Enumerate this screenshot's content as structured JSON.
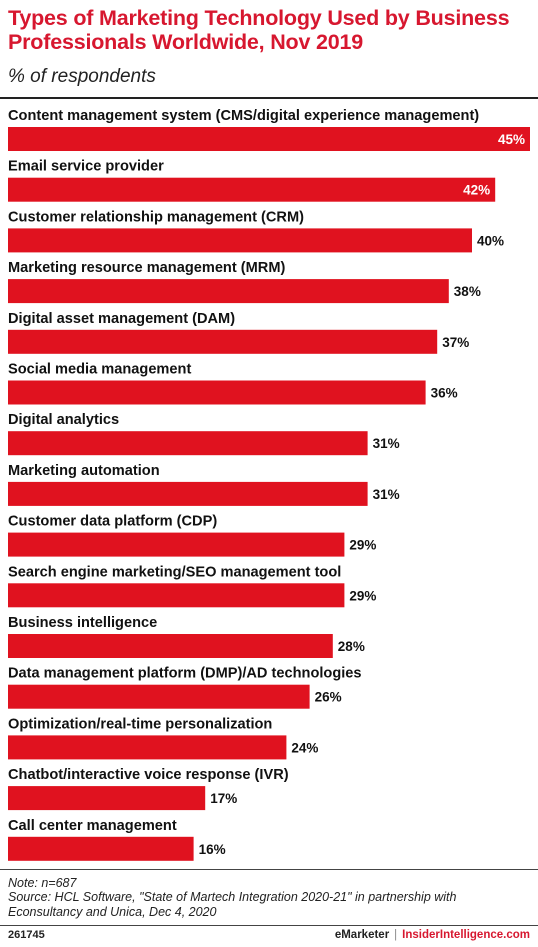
{
  "header": {
    "title": "Types of Marketing Technology Used by Business Professionals Worldwide, Nov 2019",
    "subtitle": "% of respondents"
  },
  "chart_data": {
    "type": "bar",
    "orientation": "horizontal",
    "categories": [
      "Content management system (CMS/digital experience management)",
      "Email service provider",
      "Customer relationship management (CRM)",
      "Marketing resource management (MRM)",
      "Digital asset management (DAM)",
      "Social media management",
      "Digital analytics",
      "Marketing automation",
      "Customer data platform (CDP)",
      "Search engine marketing/SEO management tool",
      "Business intelligence",
      "Data management platform (DMP)/AD technologies",
      "Optimization/real-time personalization",
      "Chatbot/interactive voice response (IVR)",
      "Call center management"
    ],
    "values": [
      45,
      42,
      40,
      38,
      37,
      36,
      31,
      31,
      29,
      29,
      28,
      26,
      24,
      17,
      16
    ],
    "value_suffix": "%",
    "xlim": [
      0,
      45
    ],
    "bar_color": "#e0121f",
    "grid": false,
    "legend": "none"
  },
  "footer": {
    "note": "Note: n=687",
    "source": "Source: HCL Software, \"State of Martech Integration 2020-21\" in partnership with Econsultancy and Unica, Dec 4, 2020",
    "chart_id": "261745",
    "brand_left": "eMarketer",
    "brand_sep": "|",
    "brand_right": "InsiderIntelligence.com"
  },
  "colors": {
    "accent": "#d7172f",
    "bar": "#e0121f"
  }
}
